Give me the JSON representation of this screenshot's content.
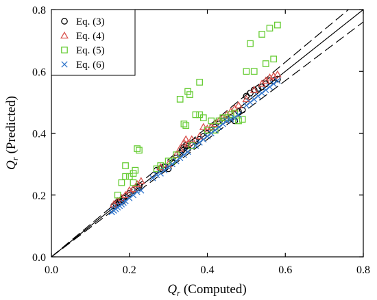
{
  "chart_data": {
    "type": "scatter",
    "title": "",
    "xlabel": {
      "symbol": "Q",
      "sub": "r",
      "text": " (Computed)"
    },
    "ylabel": {
      "symbol": "Q",
      "sub": "r",
      "text": " (Predicted)"
    },
    "xlim": [
      0,
      0.8
    ],
    "ylim": [
      0,
      0.8
    ],
    "xticks": [
      "0.0",
      "0.2",
      "0.4",
      "0.6",
      "0.8"
    ],
    "yticks": [
      "0.0",
      "0.2",
      "0.4",
      "0.6",
      "0.8"
    ],
    "xtick_values": [
      0,
      0.2,
      0.4,
      0.6,
      0.8
    ],
    "ytick_values": [
      0,
      0.2,
      0.4,
      0.6,
      0.8
    ],
    "grid": false,
    "legend_position": "top-left",
    "reference_lines": [
      {
        "kind": "equality",
        "slope": 1.0,
        "style": "solid"
      },
      {
        "kind": "+5%",
        "slope": 1.05,
        "style": "dashed"
      },
      {
        "kind": "-5%",
        "slope": 0.95,
        "style": "dashed"
      }
    ],
    "series": [
      {
        "name": "Eq. (3)",
        "marker": "circle",
        "color": "#000000",
        "points": [
          [
            0.16,
            0.165
          ],
          [
            0.165,
            0.172
          ],
          [
            0.17,
            0.175
          ],
          [
            0.172,
            0.18
          ],
          [
            0.175,
            0.178
          ],
          [
            0.178,
            0.182
          ],
          [
            0.18,
            0.185
          ],
          [
            0.182,
            0.18
          ],
          [
            0.185,
            0.19
          ],
          [
            0.19,
            0.195
          ],
          [
            0.2,
            0.205
          ],
          [
            0.21,
            0.215
          ],
          [
            0.22,
            0.225
          ],
          [
            0.225,
            0.23
          ],
          [
            0.27,
            0.28
          ],
          [
            0.28,
            0.285
          ],
          [
            0.29,
            0.29
          ],
          [
            0.3,
            0.285
          ],
          [
            0.31,
            0.305
          ],
          [
            0.32,
            0.32
          ],
          [
            0.33,
            0.335
          ],
          [
            0.335,
            0.345
          ],
          [
            0.34,
            0.355
          ],
          [
            0.345,
            0.36
          ],
          [
            0.35,
            0.35
          ],
          [
            0.36,
            0.36
          ],
          [
            0.37,
            0.375
          ],
          [
            0.38,
            0.38
          ],
          [
            0.39,
            0.39
          ],
          [
            0.4,
            0.4
          ],
          [
            0.41,
            0.41
          ],
          [
            0.42,
            0.42
          ],
          [
            0.43,
            0.43
          ],
          [
            0.44,
            0.44
          ],
          [
            0.45,
            0.445
          ],
          [
            0.46,
            0.45
          ],
          [
            0.47,
            0.44
          ],
          [
            0.48,
            0.47
          ],
          [
            0.49,
            0.475
          ],
          [
            0.5,
            0.52
          ],
          [
            0.51,
            0.53
          ],
          [
            0.52,
            0.54
          ],
          [
            0.53,
            0.545
          ],
          [
            0.54,
            0.55
          ],
          [
            0.55,
            0.56
          ],
          [
            0.56,
            0.57
          ],
          [
            0.57,
            0.57
          ],
          [
            0.58,
            0.575
          ]
        ]
      },
      {
        "name": "Eq. (4)",
        "marker": "triangle",
        "color": "#d9534f",
        "points": [
          [
            0.16,
            0.17
          ],
          [
            0.17,
            0.18
          ],
          [
            0.18,
            0.19
          ],
          [
            0.19,
            0.2
          ],
          [
            0.2,
            0.215
          ],
          [
            0.21,
            0.22
          ],
          [
            0.22,
            0.235
          ],
          [
            0.23,
            0.245
          ],
          [
            0.28,
            0.29
          ],
          [
            0.3,
            0.3
          ],
          [
            0.32,
            0.33
          ],
          [
            0.33,
            0.35
          ],
          [
            0.34,
            0.37
          ],
          [
            0.345,
            0.38
          ],
          [
            0.35,
            0.365
          ],
          [
            0.36,
            0.38
          ],
          [
            0.38,
            0.39
          ],
          [
            0.39,
            0.42
          ],
          [
            0.4,
            0.415
          ],
          [
            0.41,
            0.42
          ],
          [
            0.42,
            0.43
          ],
          [
            0.43,
            0.44
          ],
          [
            0.44,
            0.45
          ],
          [
            0.45,
            0.46
          ],
          [
            0.46,
            0.47
          ],
          [
            0.47,
            0.48
          ],
          [
            0.48,
            0.49
          ],
          [
            0.5,
            0.51
          ],
          [
            0.52,
            0.54
          ],
          [
            0.54,
            0.56
          ],
          [
            0.55,
            0.57
          ],
          [
            0.56,
            0.58
          ],
          [
            0.57,
            0.585
          ],
          [
            0.58,
            0.59
          ]
        ]
      },
      {
        "name": "Eq. (5)",
        "marker": "square",
        "color": "#66cc33",
        "points": [
          [
            0.17,
            0.2
          ],
          [
            0.18,
            0.24
          ],
          [
            0.19,
            0.26
          ],
          [
            0.19,
            0.295
          ],
          [
            0.2,
            0.26
          ],
          [
            0.21,
            0.27
          ],
          [
            0.215,
            0.28
          ],
          [
            0.22,
            0.35
          ],
          [
            0.225,
            0.345
          ],
          [
            0.21,
            0.24
          ],
          [
            0.27,
            0.285
          ],
          [
            0.28,
            0.295
          ],
          [
            0.3,
            0.31
          ],
          [
            0.31,
            0.31
          ],
          [
            0.32,
            0.33
          ],
          [
            0.33,
            0.51
          ],
          [
            0.34,
            0.43
          ],
          [
            0.345,
            0.425
          ],
          [
            0.35,
            0.535
          ],
          [
            0.355,
            0.525
          ],
          [
            0.36,
            0.36
          ],
          [
            0.37,
            0.46
          ],
          [
            0.38,
            0.46
          ],
          [
            0.38,
            0.565
          ],
          [
            0.39,
            0.45
          ],
          [
            0.4,
            0.41
          ],
          [
            0.41,
            0.44
          ],
          [
            0.42,
            0.41
          ],
          [
            0.43,
            0.44
          ],
          [
            0.44,
            0.45
          ],
          [
            0.45,
            0.45
          ],
          [
            0.46,
            0.46
          ],
          [
            0.47,
            0.465
          ],
          [
            0.48,
            0.44
          ],
          [
            0.49,
            0.445
          ],
          [
            0.5,
            0.6
          ],
          [
            0.51,
            0.69
          ],
          [
            0.52,
            0.6
          ],
          [
            0.54,
            0.72
          ],
          [
            0.55,
            0.625
          ],
          [
            0.56,
            0.74
          ],
          [
            0.57,
            0.64
          ],
          [
            0.58,
            0.75
          ]
        ]
      },
      {
        "name": "Eq. (6)",
        "marker": "x",
        "color": "#3377cc",
        "points": [
          [
            0.155,
            0.145
          ],
          [
            0.16,
            0.15
          ],
          [
            0.165,
            0.155
          ],
          [
            0.17,
            0.16
          ],
          [
            0.175,
            0.165
          ],
          [
            0.18,
            0.17
          ],
          [
            0.185,
            0.175
          ],
          [
            0.19,
            0.18
          ],
          [
            0.2,
            0.19
          ],
          [
            0.21,
            0.2
          ],
          [
            0.22,
            0.21
          ],
          [
            0.23,
            0.215
          ],
          [
            0.26,
            0.255
          ],
          [
            0.27,
            0.265
          ],
          [
            0.28,
            0.27
          ],
          [
            0.29,
            0.28
          ],
          [
            0.3,
            0.29
          ],
          [
            0.31,
            0.3
          ],
          [
            0.32,
            0.31
          ],
          [
            0.33,
            0.32
          ],
          [
            0.34,
            0.33
          ],
          [
            0.35,
            0.34
          ],
          [
            0.37,
            0.36
          ],
          [
            0.38,
            0.37
          ],
          [
            0.39,
            0.38
          ],
          [
            0.4,
            0.39
          ],
          [
            0.41,
            0.4
          ],
          [
            0.42,
            0.41
          ],
          [
            0.43,
            0.42
          ],
          [
            0.44,
            0.43
          ],
          [
            0.45,
            0.44
          ],
          [
            0.46,
            0.445
          ],
          [
            0.47,
            0.45
          ],
          [
            0.48,
            0.46
          ],
          [
            0.5,
            0.49
          ],
          [
            0.51,
            0.5
          ],
          [
            0.52,
            0.51
          ],
          [
            0.53,
            0.52
          ],
          [
            0.54,
            0.53
          ],
          [
            0.55,
            0.54
          ],
          [
            0.56,
            0.55
          ],
          [
            0.57,
            0.56
          ],
          [
            0.58,
            0.57
          ]
        ]
      }
    ]
  }
}
